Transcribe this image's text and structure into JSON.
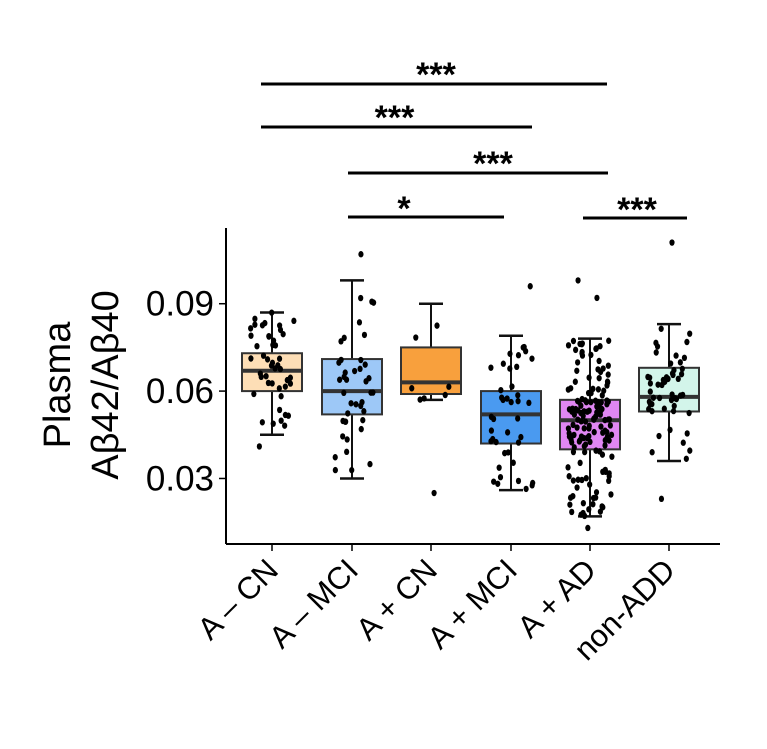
{
  "chart_data": {
    "type": "box",
    "title": "",
    "xlabel": "",
    "ylabel_lines": [
      "Plasma",
      "Aβ42/Aβ40"
    ],
    "ylim": [
      0.0075,
      0.116
    ],
    "yticks": [
      0.03,
      0.06,
      0.09
    ],
    "ytick_labels": [
      "0.03",
      "0.06",
      "0.09"
    ],
    "grid": false,
    "legend": "none",
    "categories": [
      "A – CN",
      "A – MCI",
      "A + CN",
      "A + MCI",
      "A + AD",
      "non-ADD"
    ],
    "colors": [
      "#FDDEB6",
      "#9DC8F7",
      "#F8A03D",
      "#4A9AF0",
      "#E087F2",
      "#D3F5EA"
    ],
    "boxes": [
      {
        "min": 0.045,
        "q1": 0.06,
        "median": 0.067,
        "q3": 0.073,
        "max": 0.087,
        "outliers": [
          0.041
        ],
        "n_points": 45
      },
      {
        "min": 0.03,
        "q1": 0.052,
        "median": 0.06,
        "q3": 0.071,
        "max": 0.098,
        "outliers": [
          0.107
        ],
        "n_points": 40
      },
      {
        "min": 0.057,
        "q1": 0.059,
        "median": 0.063,
        "q3": 0.075,
        "max": 0.09,
        "outliers": [
          0.025
        ],
        "n_points": 7
      },
      {
        "min": 0.026,
        "q1": 0.042,
        "median": 0.052,
        "q3": 0.06,
        "max": 0.079,
        "outliers": [
          0.096
        ],
        "n_points": 40
      },
      {
        "min": 0.017,
        "q1": 0.04,
        "median": 0.05,
        "q3": 0.057,
        "max": 0.078,
        "outliers": [
          0.098,
          0.092,
          0.013
        ],
        "n_points": 150
      },
      {
        "min": 0.036,
        "q1": 0.053,
        "median": 0.058,
        "q3": 0.068,
        "max": 0.083,
        "outliers": [
          0.111,
          0.023
        ],
        "n_points": 50
      }
    ],
    "significance": [
      {
        "from": "A – CN",
        "to": "A + AD",
        "label": "***"
      },
      {
        "from": "A – CN",
        "to": "A + MCI",
        "label": "***"
      },
      {
        "from": "A – MCI",
        "to": "A + AD",
        "label": "***"
      },
      {
        "from": "A – MCI",
        "to": "A + MCI",
        "label": "*"
      },
      {
        "from": "A + AD",
        "to": "non-ADD",
        "label": "***"
      }
    ]
  }
}
